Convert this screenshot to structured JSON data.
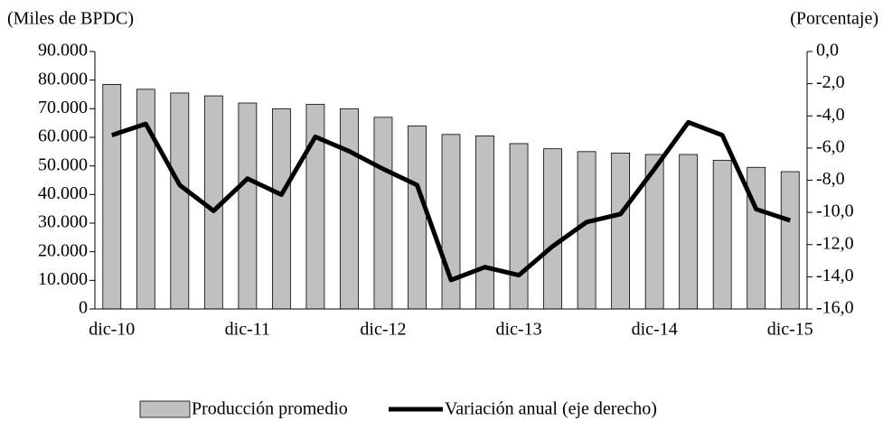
{
  "chart_data": {
    "type": "bar_line",
    "y_label": "(Miles de BPDC)",
    "y2_label": "(Porcentaje)",
    "categories": [
      "dic-10",
      null,
      null,
      null,
      "dic-11",
      null,
      null,
      null,
      "dic-12",
      null,
      null,
      null,
      "dic-13",
      null,
      null,
      null,
      "dic-14",
      null,
      null,
      null,
      "dic-15"
    ],
    "series": [
      {
        "name": "Producción promedio",
        "type": "bar",
        "color": "#c0c0c0",
        "values": [
          78500,
          76800,
          75500,
          74500,
          72000,
          70000,
          71500,
          70000,
          67000,
          64000,
          61000,
          60500,
          57800,
          56000,
          55000,
          54500,
          54000,
          54000,
          52000,
          49500,
          48000
        ]
      },
      {
        "name": "Variación anual (eje derecho)",
        "type": "line",
        "color": "#000000",
        "axis": "y2",
        "values": [
          -5.2,
          -4.5,
          -8.3,
          -9.9,
          -7.9,
          -8.9,
          -5.3,
          -6.2,
          -7.3,
          -8.3,
          -14.2,
          -13.4,
          -13.9,
          -12.1,
          -10.6,
          -10.1,
          -7.3,
          -4.4,
          -5.2,
          -9.8,
          -10.5
        ]
      }
    ],
    "ylim": [
      0,
      90000
    ],
    "yticks": [
      0,
      {
        "value": 10000,
        "label": "10.000"
      },
      {
        "value": 20000,
        "label": "20.000"
      },
      {
        "value": 30000,
        "label": "30.000"
      },
      {
        "value": 40000,
        "label": "40.000"
      },
      {
        "value": 50000,
        "label": "50.000"
      },
      {
        "value": 60000,
        "label": "60.000"
      },
      {
        "value": 70000,
        "label": "70.000"
      },
      {
        "value": 80000,
        "label": "80.000"
      },
      {
        "value": 90000,
        "label": "90.000"
      }
    ],
    "y2lim": [
      -16,
      0
    ],
    "y2ticks": [
      {
        "value": -16,
        "label": "-16,0"
      },
      {
        "value": -14,
        "label": "-14,0"
      },
      {
        "value": -12,
        "label": "-12,0"
      },
      {
        "value": -10,
        "label": "-10,0"
      },
      {
        "value": -8,
        "label": "-8,0"
      },
      {
        "value": -6,
        "label": "-6,0"
      },
      {
        "value": -4,
        "label": "-4,0"
      },
      {
        "value": -2,
        "label": "-2,0"
      },
      {
        "value": 0,
        "label": "0,0"
      }
    ],
    "legend": "bottom"
  }
}
